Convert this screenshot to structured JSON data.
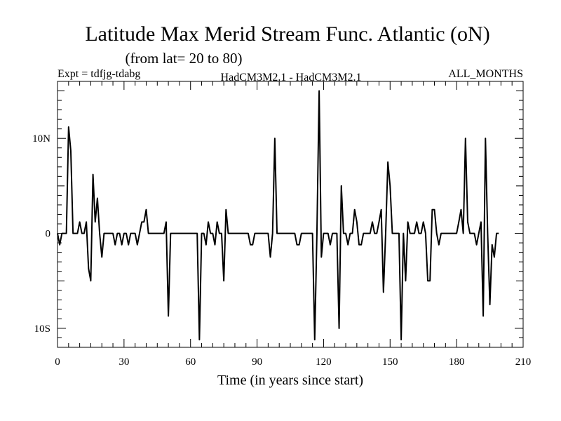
{
  "chart_data": {
    "type": "line",
    "title": "Latitude Max Merid Stream Func. Atlantic (oN)",
    "subtitle": "(from lat= 20 to 80)",
    "info_left": "Expt = tdfjg-tdabg",
    "info_center": "HadCM3M2.1 - HadCM3M2.1",
    "info_right": "ALL_MONTHS",
    "xlabel": "Time (in years since start)",
    "ylabel": "",
    "xlim": [
      0,
      210
    ],
    "ylim": [
      -12,
      16
    ],
    "x_ticks": [
      0,
      30,
      60,
      90,
      120,
      150,
      180,
      210
    ],
    "x_tick_labels": [
      "0",
      "30",
      "60",
      "90",
      "120",
      "150",
      "180",
      "210"
    ],
    "y_ticks": [
      -10,
      0,
      10
    ],
    "y_tick_labels": [
      "10S",
      "0",
      "10N"
    ],
    "series": [
      {
        "name": "latitude max",
        "x": [
          0,
          1,
          2,
          3,
          4,
          5,
          6,
          7,
          8,
          9,
          10,
          11,
          12,
          13,
          14,
          15,
          16,
          17,
          18,
          19,
          20,
          21,
          22,
          23,
          24,
          25,
          26,
          27,
          28,
          29,
          30,
          31,
          32,
          33,
          34,
          35,
          36,
          37,
          38,
          39,
          40,
          41,
          42,
          43,
          44,
          45,
          46,
          47,
          48,
          49,
          50,
          51,
          52,
          53,
          54,
          55,
          56,
          57,
          58,
          59,
          60,
          61,
          62,
          63,
          64,
          65,
          66,
          67,
          68,
          69,
          70,
          71,
          72,
          73,
          74,
          75,
          76,
          77,
          78,
          79,
          80,
          81,
          82,
          83,
          84,
          85,
          86,
          87,
          88,
          89,
          90,
          91,
          92,
          93,
          94,
          95,
          96,
          97,
          98,
          99,
          100,
          101,
          102,
          103,
          104,
          105,
          106,
          107,
          108,
          109,
          110,
          111,
          112,
          113,
          114,
          115,
          116,
          117,
          118,
          119,
          120,
          121,
          122,
          123,
          124,
          125,
          126,
          127,
          128,
          129,
          130,
          131,
          132,
          133,
          134,
          135,
          136,
          137,
          138,
          139,
          140,
          141,
          142,
          143,
          144,
          145,
          146,
          147,
          148,
          149,
          150,
          151,
          152,
          153,
          154,
          155,
          156,
          157,
          158,
          159,
          160,
          161,
          162,
          163,
          164,
          165,
          166,
          167,
          168,
          169,
          170,
          171,
          172,
          173,
          174,
          175,
          176,
          177,
          178,
          179,
          180,
          181,
          182,
          183,
          184,
          185,
          186,
          187,
          188,
          189,
          190,
          191,
          192,
          193,
          194,
          195,
          196,
          197,
          198,
          199
        ],
        "values": [
          0,
          -1.2,
          0,
          0,
          0,
          11.2,
          8.7,
          0,
          0,
          0,
          1.2,
          0,
          0,
          1.2,
          -3.7,
          -5,
          6.2,
          1.2,
          3.7,
          0,
          -2.5,
          0,
          0,
          0,
          0,
          0,
          -1.2,
          0,
          0,
          -1.2,
          0,
          0,
          -1.2,
          0,
          0,
          0,
          -1.2,
          0,
          1.2,
          1.2,
          2.5,
          0,
          0,
          0,
          0,
          0,
          0,
          0,
          0,
          1.2,
          -8.7,
          0,
          0,
          0,
          0,
          0,
          0,
          0,
          0,
          0,
          0,
          0,
          0,
          0,
          -11.2,
          0,
          0,
          -1.2,
          1.2,
          0,
          0,
          -1.2,
          1.2,
          0,
          0,
          -5,
          2.5,
          0,
          0,
          0,
          0,
          0,
          0,
          0,
          0,
          0,
          0,
          -1.2,
          -1.2,
          0,
          0,
          0,
          0,
          0,
          0,
          0,
          -2.5,
          0,
          10,
          0,
          0,
          0,
          0,
          0,
          0,
          0,
          0,
          0,
          -1.2,
          -1.2,
          0,
          0,
          0,
          0,
          0,
          0,
          -11.2,
          0,
          15,
          -2.5,
          0,
          0,
          0,
          -1.2,
          0,
          0,
          0,
          -10,
          5,
          0,
          0,
          -1.2,
          0,
          0,
          2.5,
          1.2,
          -1.2,
          -1.2,
          0,
          0,
          0,
          0,
          1.2,
          0,
          0,
          1.2,
          2.5,
          -6.2,
          0,
          7.5,
          5,
          0,
          0,
          0,
          0,
          -11.2,
          0,
          -5,
          1.2,
          0,
          0,
          0,
          1.2,
          0,
          0,
          1.2,
          0,
          -5,
          -5,
          2.5,
          2.5,
          0,
          -1.2,
          0,
          0,
          0,
          0,
          0,
          0,
          0,
          0,
          1.2,
          2.5,
          0,
          10,
          1.2,
          0,
          0,
          0,
          -1.2,
          0,
          1.2,
          -8.7,
          10,
          0,
          -7.5,
          -1.2,
          -2.5,
          0,
          0
        ],
        "color": "#000000"
      }
    ]
  }
}
